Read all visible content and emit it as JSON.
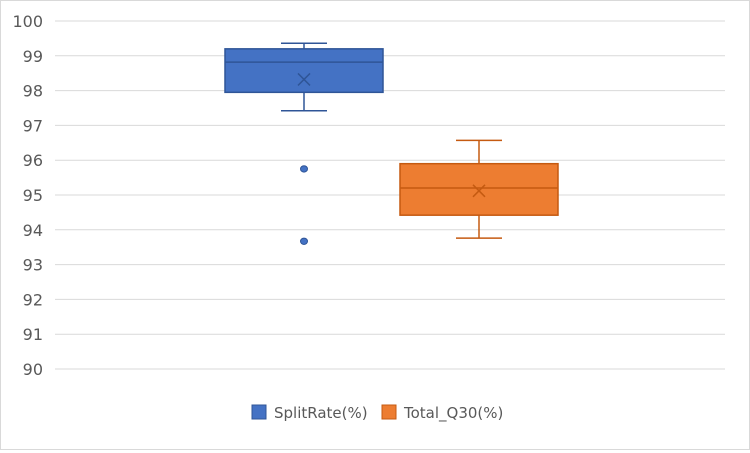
{
  "chart_data": {
    "type": "box",
    "ylim": [
      90,
      100
    ],
    "y_ticks": [
      "90",
      "91",
      "92",
      "93",
      "94",
      "95",
      "96",
      "97",
      "98",
      "99",
      "100"
    ],
    "grid": true,
    "legend_position": "bottom",
    "series": [
      {
        "name": "SplitRate(%)",
        "color": "#4472c4",
        "stroke": "#2f5597",
        "whisker_low": 97.42,
        "q1": 97.95,
        "median": 98.82,
        "q3": 99.2,
        "whisker_high": 99.36,
        "mean": 98.32,
        "outliers": [
          95.75,
          93.67
        ]
      },
      {
        "name": "Total_Q30(%)",
        "color": "#ed7d31",
        "stroke": "#c55a11",
        "whisker_low": 93.76,
        "q1": 94.42,
        "median": 95.2,
        "q3": 95.9,
        "whisker_high": 96.57,
        "mean": 95.12,
        "outliers": []
      }
    ]
  }
}
